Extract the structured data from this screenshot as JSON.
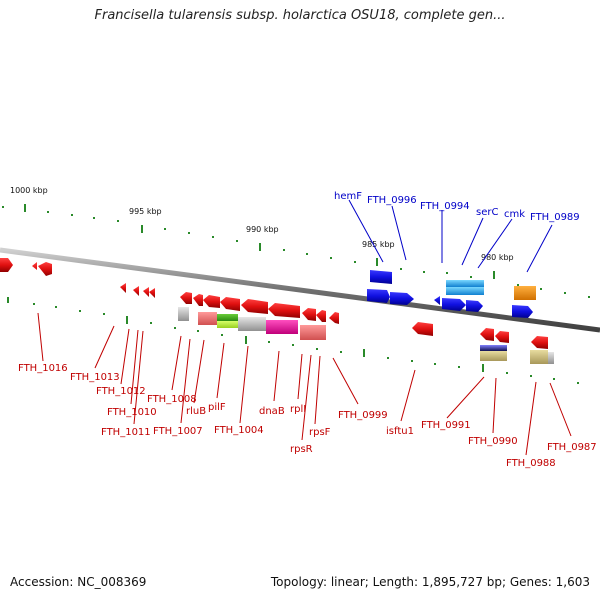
{
  "header": {
    "title": "Francisella tularensis subsp. holarctica OSU18, complete gen..."
  },
  "footer": {
    "accession": "Accession: NC_008369",
    "summary": "Topology: linear; Length: 1,895,727 bp; Genes: 1,603"
  },
  "map": {
    "scale_labels": [
      "1000 kbp",
      "995 kbp",
      "990 kbp",
      "985 kbp",
      "980 kbp"
    ],
    "top_gene_labels": [
      "hemF",
      "FTH_0996",
      "FTH_0994",
      "serC",
      "cmk",
      "FTH_0989"
    ],
    "bottom_gene_labels": [
      "FTH_1016",
      "FTH_1013",
      "FTH_1012",
      "FTH_1010",
      "FTH_1011",
      "FTH_1008",
      "FTH_1007",
      "rluB",
      "pilF",
      "FTH_1004",
      "dnaB",
      "rplI",
      "rpsR",
      "rpsF",
      "FTH_0999",
      "isftu1",
      "FTH_0991",
      "FTH_0990",
      "FTH_0988",
      "FTH_0987"
    ],
    "colors": {
      "forward_genes": "#1414e0",
      "reverse_genes": "#e01414",
      "top_label": "#0000c8",
      "bottom_label": "#c00000",
      "backbone": "#7a7a7a",
      "ticks": "#2a8a2a"
    }
  }
}
